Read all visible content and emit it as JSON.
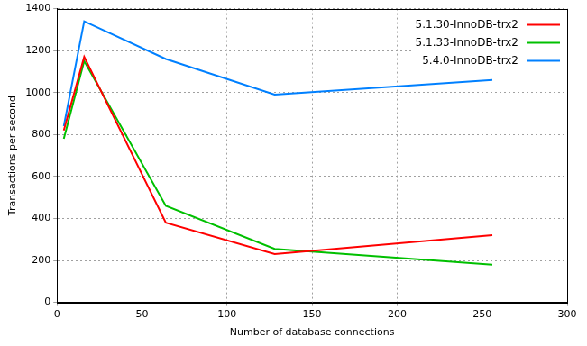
{
  "chart_data": {
    "type": "line",
    "x_label": "Number of database connections",
    "y_label": "Transactions per second",
    "x": [
      4,
      16,
      64,
      128,
      256
    ],
    "series": [
      {
        "name": "5.1.30-InnoDB-trx2",
        "color": "#ff0000",
        "values": [
          820,
          1170,
          380,
          230,
          320
        ]
      },
      {
        "name": "5.1.33-InnoDB-trx2",
        "color": "#00c000",
        "values": [
          780,
          1150,
          460,
          255,
          180
        ]
      },
      {
        "name": "5.4.0-InnoDB-trx2",
        "color": "#0080ff",
        "values": [
          840,
          1340,
          1160,
          990,
          1060
        ]
      }
    ],
    "xlim": [
      0,
      300
    ],
    "xticks": [
      0,
      50,
      100,
      150,
      200,
      250,
      300
    ],
    "ylim": [
      0,
      1400
    ],
    "yticks": [
      0,
      200,
      400,
      600,
      800,
      1000,
      1200,
      1400
    ],
    "grid": true,
    "legend": "top-right"
  }
}
